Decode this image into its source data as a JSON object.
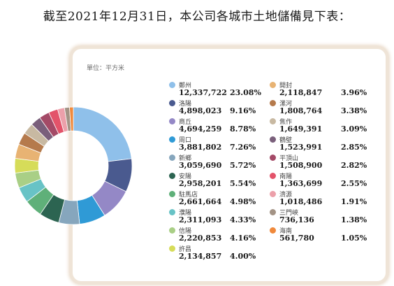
{
  "heading": "截至2021年12月31日，本公司各城市土地儲備見下表：",
  "unit_label": "單位：平方米",
  "chart_data": {
    "type": "pie",
    "variant": "donut",
    "unit": "平方米",
    "categories": [
      "鄭州",
      "洛陽",
      "商丘",
      "周口",
      "新鄉",
      "安陽",
      "駐馬店",
      "濮陽",
      "信陽",
      "許昌",
      "開封",
      "漯河",
      "焦作",
      "鶴壁",
      "平頂山",
      "南陽",
      "濟源",
      "三門峽",
      "海南"
    ],
    "values": [
      12337722,
      4898023,
      4694259,
      3881802,
      3059690,
      2958201,
      2661664,
      2311093,
      2220853,
      2134857,
      2118847,
      1808764,
      1649391,
      1523991,
      1508900,
      1363699,
      1018486,
      736136,
      561780
    ],
    "value_labels": [
      "12,337,722",
      "4,898,023",
      "4,694,259",
      "3,881,802",
      "3,059,690",
      "2,958,201",
      "2,661,664",
      "2,311,093",
      "2,220,853",
      "2,134,857",
      "2,118,847",
      "1,808,764",
      "1,649,391",
      "1,523,991",
      "1,508,900",
      "1,363,699",
      "1,018,486",
      "736,136",
      "561,780"
    ],
    "percent_labels": [
      "23.08%",
      "9.16%",
      "8.78%",
      "7.26%",
      "5.72%",
      "5.54%",
      "4.98%",
      "4.33%",
      "4.16%",
      "4.00%",
      "3.96%",
      "3.38%",
      "3.09%",
      "2.85%",
      "2.82%",
      "2.55%",
      "1.91%",
      "1.38%",
      "1.05%"
    ],
    "percentages": [
      23.08,
      9.16,
      8.78,
      7.26,
      5.72,
      5.54,
      4.98,
      4.33,
      4.16,
      4.0,
      3.96,
      3.38,
      3.09,
      2.85,
      2.82,
      2.55,
      1.91,
      1.38,
      1.05
    ],
    "colors": [
      "#8fc0ea",
      "#4a5a8f",
      "#9488c6",
      "#2f9ad6",
      "#86a6bd",
      "#2c6451",
      "#5fb079",
      "#68c3c6",
      "#a9cf86",
      "#d6dc59",
      "#e8b373",
      "#b57a4c",
      "#c8b9a2",
      "#7a5f7b",
      "#a44a67",
      "#e3536a",
      "#eca0aa",
      "#a39385",
      "#f0893b"
    ],
    "legend": "right"
  }
}
